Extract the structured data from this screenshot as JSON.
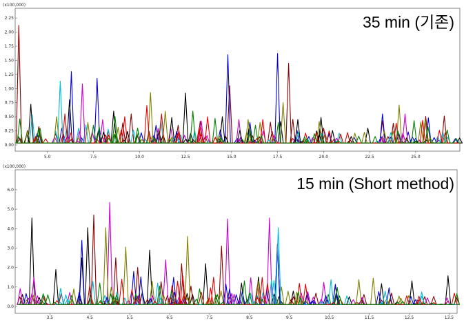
{
  "chart_data": [
    {
      "type": "line",
      "title": "35 min (기존)",
      "scale_label": "(x100,000)",
      "xlim": [
        3.4,
        27.4
      ],
      "ylim": [
        0,
        2.3
      ],
      "x_ticks": [
        5.0,
        7.5,
        10.0,
        12.5,
        15.0,
        17.5,
        20.0,
        22.5,
        25.0
      ],
      "x_tick_labels": [
        "5.0",
        "7.5",
        "10.0",
        "12.5",
        "15.0",
        "17.5",
        "20.0",
        "22.5",
        "25.0"
      ],
      "y_ticks": [
        0.0,
        0.25,
        0.5,
        0.75,
        1.0,
        1.25,
        1.5,
        1.75,
        2.0,
        2.25
      ],
      "y_tick_labels": [
        "0.00",
        "0.25",
        "0.50",
        "0.75",
        "1.00",
        "1.25",
        "1.50",
        "1.75",
        "2.00",
        "2.25"
      ],
      "series": [
        {
          "color": "#8b0000",
          "peaks": [
            [
              3.45,
              2.12
            ],
            [
              3.5,
              0.12
            ],
            [
              9.55,
              0.55
            ],
            [
              12.1,
              0.35
            ],
            [
              13.3,
              0.42
            ],
            [
              14.9,
              1.05
            ],
            [
              18.1,
              1.45
            ],
            [
              20.0,
              0.3
            ],
            [
              23.5,
              0.15
            ]
          ]
        },
        {
          "color": "#0000dd",
          "peaks": [
            [
              4.45,
              0.2
            ],
            [
              6.3,
              1.3
            ],
            [
              7.7,
              1.18
            ],
            [
              10.9,
              0.35
            ],
            [
              14.8,
              1.6
            ],
            [
              16.0,
              0.4
            ],
            [
              17.5,
              1.62
            ],
            [
              19.2,
              0.15
            ],
            [
              23.2,
              0.55
            ],
            [
              25.0,
              0.12
            ]
          ]
        },
        {
          "color": "#00bcd4",
          "peaks": [
            [
              5.7,
              1.13
            ],
            [
              6.7,
              0.3
            ],
            [
              8.3,
              0.28
            ],
            [
              13.0,
              0.25
            ],
            [
              19.9,
              0.2
            ]
          ]
        },
        {
          "color": "#cc00cc",
          "peaks": [
            [
              6.9,
              1.08
            ],
            [
              8.0,
              0.45
            ],
            [
              11.7,
              0.3
            ],
            [
              15.4,
              0.45
            ],
            [
              20.7,
              0.12
            ]
          ]
        },
        {
          "color": "#000000",
          "peaks": [
            [
              4.1,
              0.72
            ],
            [
              6.2,
              0.8
            ],
            [
              8.6,
              0.6
            ],
            [
              12.5,
              0.92
            ],
            [
              14.5,
              0.5
            ],
            [
              18.6,
              0.45
            ],
            [
              21.5,
              0.15
            ],
            [
              22.4,
              0.3
            ],
            [
              24.5,
              0.12
            ]
          ]
        },
        {
          "color": "#808000",
          "peaks": [
            [
              5.5,
              0.5
            ],
            [
              7.2,
              0.4
            ],
            [
              10.6,
              0.93
            ],
            [
              11.4,
              0.6
            ],
            [
              15.9,
              0.45
            ],
            [
              17.8,
              0.75
            ],
            [
              24.1,
              0.71
            ],
            [
              25.8,
              0.12
            ]
          ]
        },
        {
          "color": "#e00000",
          "peaks": [
            [
              5.95,
              0.55
            ],
            [
              9.2,
              0.5
            ],
            [
              10.4,
              0.7
            ],
            [
              11.2,
              0.55
            ],
            [
              13.7,
              0.5
            ],
            [
              16.7,
              0.45
            ],
            [
              20.3,
              0.25
            ],
            [
              21.3,
              0.22
            ]
          ]
        },
        {
          "color": "#008000",
          "peaks": [
            [
              4.6,
              0.3
            ],
            [
              7.5,
              0.35
            ],
            [
              9.9,
              0.3
            ],
            [
              12.9,
              0.6
            ],
            [
              16.3,
              0.35
            ],
            [
              19.5,
              0.2
            ],
            [
              22.8,
              0.15
            ]
          ]
        }
      ]
    },
    {
      "type": "line",
      "title": "15 min (Short method)",
      "scale_label": "(x100,000)",
      "xlim": [
        2.7,
        13.7
      ],
      "ylim": [
        0,
        6.6
      ],
      "x_ticks": [
        3.5,
        4.5,
        5.5,
        6.5,
        7.5,
        8.5,
        9.5,
        10.5,
        11.5,
        12.5,
        13.5
      ],
      "x_tick_labels": [
        "3.5",
        "4.5",
        "5.5",
        "6.5",
        "7.5",
        "8.5",
        "9.5",
        "10.5",
        "11.5",
        "12.5",
        "13.5"
      ],
      "y_ticks": [
        0.0,
        1.0,
        2.0,
        3.0,
        4.0,
        5.0,
        6.0
      ],
      "y_tick_labels": [
        "0.0",
        "1.0",
        "2.0",
        "3.0",
        "4.0",
        "5.0",
        "6.0"
      ],
      "series": [
        {
          "color": "#000000",
          "peaks": [
            [
              3.05,
              4.55
            ],
            [
              3.65,
              1.9
            ],
            [
              4.3,
              2.5
            ],
            [
              4.45,
              4.05
            ],
            [
              6.0,
              2.9
            ],
            [
              7.4,
              2.2
            ],
            [
              8.3,
              1.2
            ],
            [
              9.2,
              3.05
            ],
            [
              11.0,
              0.5
            ],
            [
              12.2,
              0.25
            ],
            [
              13.3,
              0.12
            ]
          ]
        },
        {
          "color": "#8b0000",
          "peaks": [
            [
              4.6,
              4.7
            ],
            [
              5.15,
              2.5
            ],
            [
              5.7,
              2.0
            ],
            [
              6.8,
              2.2
            ],
            [
              7.8,
              3.1
            ],
            [
              8.7,
              1.1
            ],
            [
              9.6,
              0.5
            ]
          ]
        },
        {
          "color": "#cc00cc",
          "peaks": [
            [
              3.1,
              1.5
            ],
            [
              5.0,
              5.35
            ],
            [
              6.4,
              2.4
            ],
            [
              7.95,
              4.5
            ],
            [
              9.0,
              4.55
            ],
            [
              11.1,
              0.35
            ]
          ]
        },
        {
          "color": "#808000",
          "peaks": [
            [
              4.1,
              0.9
            ],
            [
              4.9,
              4.05
            ],
            [
              5.4,
              3.05
            ],
            [
              6.95,
              3.6
            ],
            [
              9.3,
              1.0
            ],
            [
              11.6,
              1.45
            ],
            [
              12.7,
              0.2
            ]
          ]
        },
        {
          "color": "#0000dd",
          "peaks": [
            [
              4.3,
              3.4
            ],
            [
              5.6,
              1.8
            ],
            [
              6.6,
              1.5
            ],
            [
              8.0,
              0.9
            ],
            [
              9.2,
              3.2
            ],
            [
              10.1,
              0.3
            ]
          ]
        },
        {
          "color": "#00bcd4",
          "peaks": [
            [
              3.9,
              0.6
            ],
            [
              6.2,
              1.2
            ],
            [
              9.22,
              4.05
            ],
            [
              10.3,
              0.25
            ]
          ]
        },
        {
          "color": "#e00000",
          "peaks": [
            [
              4.5,
              1.1
            ],
            [
              5.3,
              1.4
            ],
            [
              6.7,
              1.3
            ],
            [
              7.6,
              1.5
            ],
            [
              8.95,
              1.2
            ],
            [
              10.6,
              0.2
            ]
          ]
        },
        {
          "color": "#008000",
          "peaks": [
            [
              3.3,
              0.3
            ],
            [
              4.75,
              1.2
            ],
            [
              6.25,
              1.05
            ],
            [
              7.25,
              0.9
            ],
            [
              8.5,
              0.7
            ],
            [
              9.9,
              0.3
            ]
          ]
        }
      ]
    }
  ]
}
